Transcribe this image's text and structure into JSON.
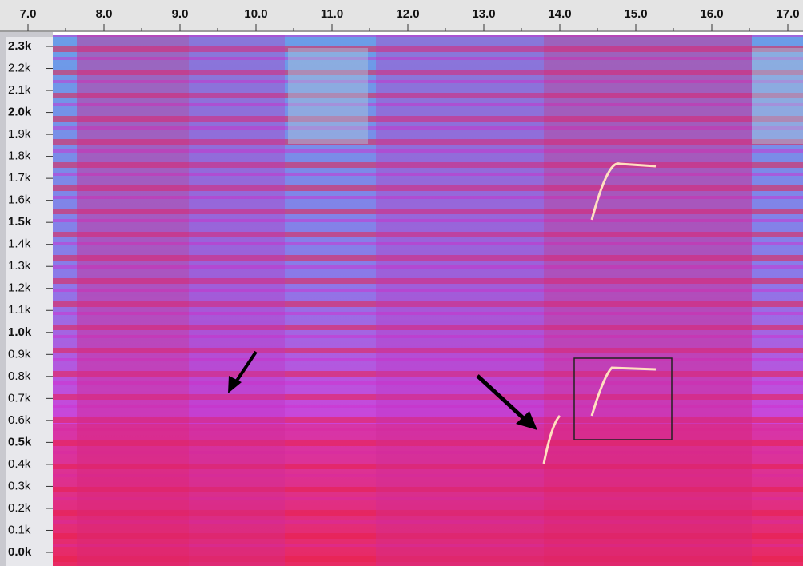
{
  "time_ruler": {
    "labels": [
      "7.0",
      "8.0",
      "9.0",
      "10.0",
      "11.0",
      "12.0",
      "13.0",
      "14.0",
      "15.0",
      "16.0",
      "17.0"
    ]
  },
  "frequency_axis": {
    "labels": [
      "2.3k",
      "2.2k",
      "2.1k",
      "2.0k",
      "1.9k",
      "1.8k",
      "1.7k",
      "1.6k",
      "1.5k",
      "1.4k",
      "1.3k",
      "1.2k",
      "1.1k",
      "1.0k",
      "0.9k",
      "0.8k",
      "0.7k",
      "0.6k",
      "0.5k",
      "0.4k",
      "0.3k",
      "0.2k",
      "0.1k",
      "0.0k"
    ]
  }
}
